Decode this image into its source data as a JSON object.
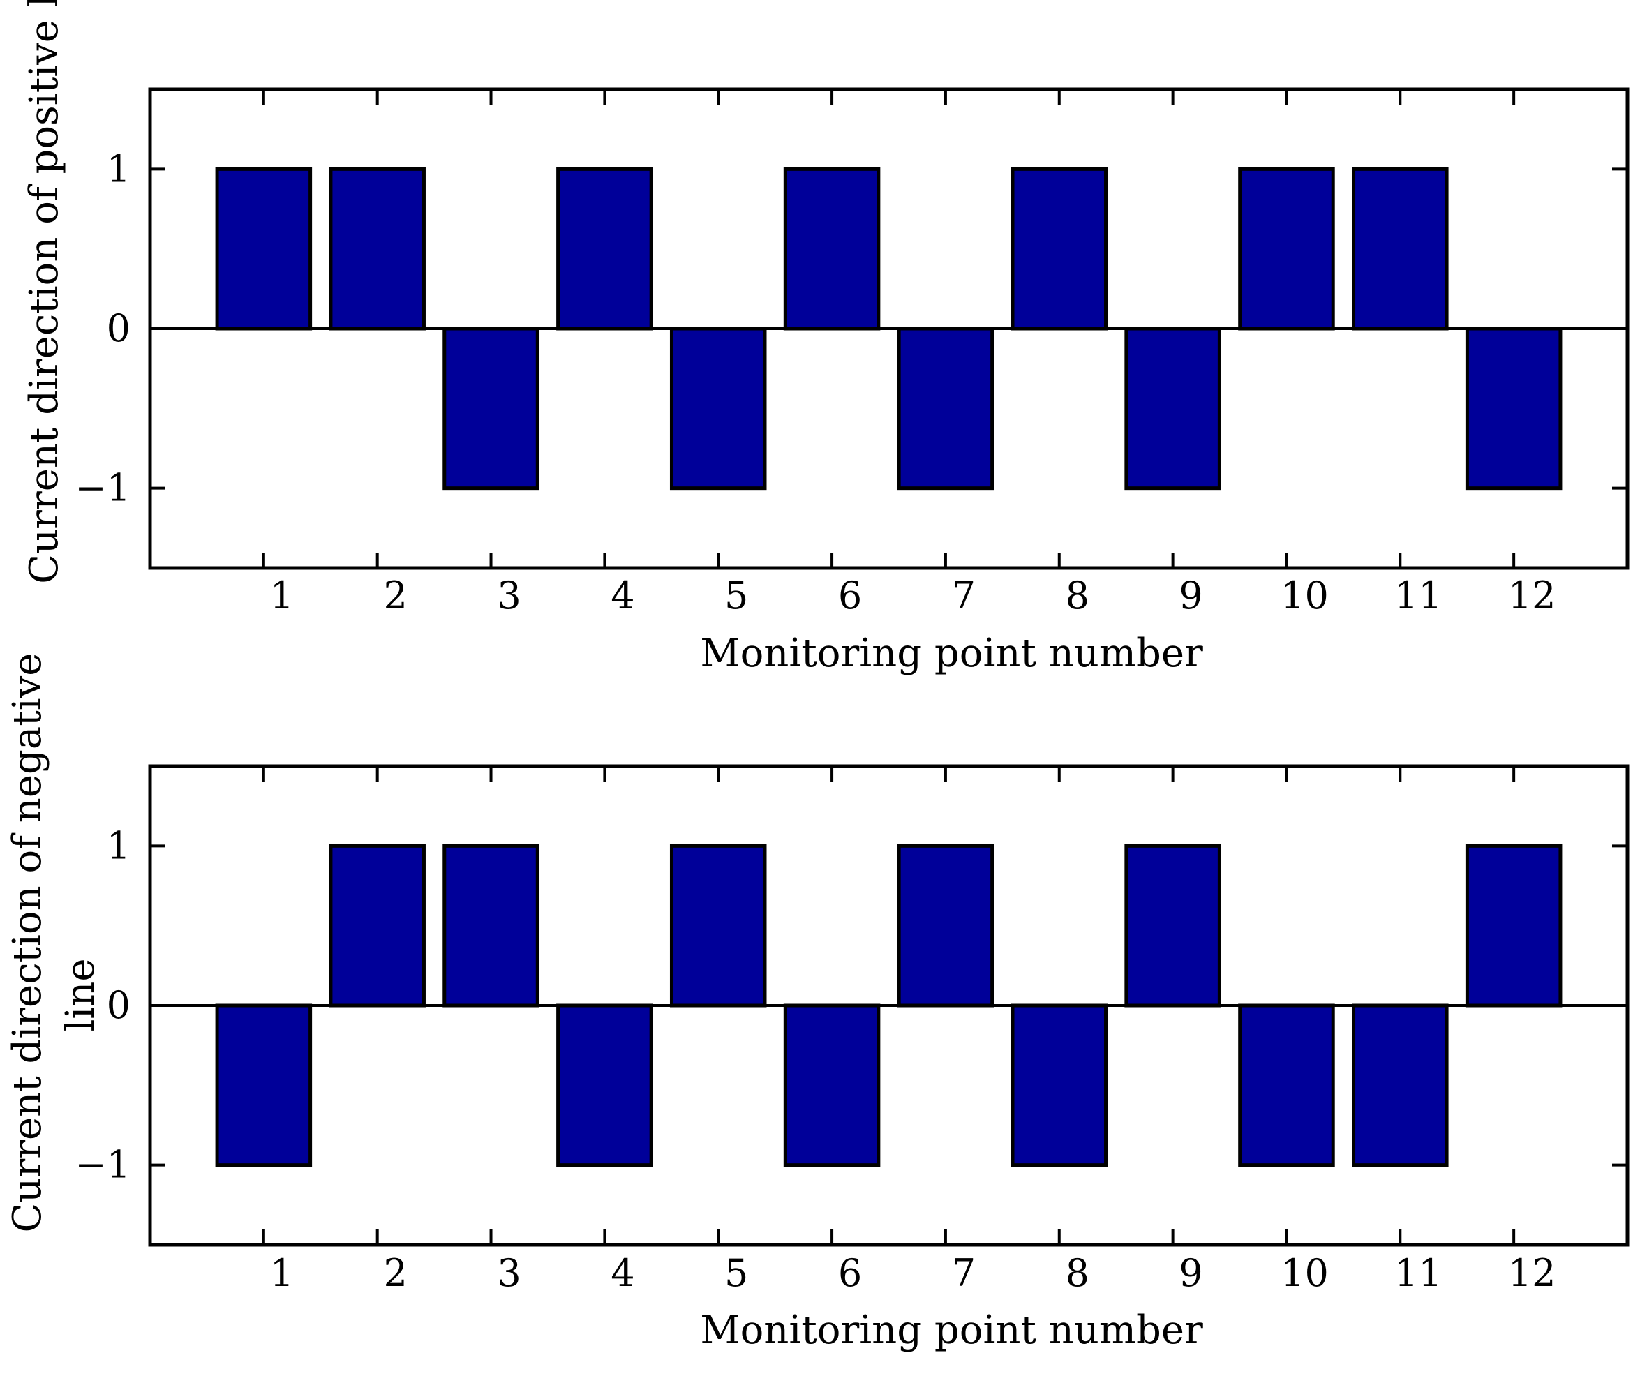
{
  "chart_data": [
    {
      "type": "bar",
      "categories": [
        "1",
        "2",
        "3",
        "4",
        "5",
        "6",
        "7",
        "8",
        "9",
        "10",
        "11",
        "12"
      ],
      "values": [
        1,
        1,
        -1,
        1,
        -1,
        1,
        -1,
        1,
        -1,
        1,
        1,
        -1
      ],
      "xlabel": "Monitoring point number",
      "ylabel": [
        "Current direction of positive line"
      ],
      "xlim": [
        0,
        13
      ],
      "ylim": [
        -1.5,
        1.5
      ],
      "yticks": [
        {
          "value": -1,
          "label": "−1"
        },
        {
          "value": 0,
          "label": "0"
        },
        {
          "value": 1,
          "label": "1"
        }
      ],
      "bar_color": "#000099",
      "grid": false
    },
    {
      "type": "bar",
      "categories": [
        "1",
        "2",
        "3",
        "4",
        "5",
        "6",
        "7",
        "8",
        "9",
        "10",
        "11",
        "12"
      ],
      "values": [
        -1,
        1,
        1,
        -1,
        1,
        -1,
        1,
        -1,
        1,
        -1,
        -1,
        1
      ],
      "xlabel": "Monitoring point number",
      "ylabel": [
        "Current direction of negative",
        "line"
      ],
      "xlim": [
        0,
        13
      ],
      "ylim": [
        -1.5,
        1.5
      ],
      "yticks": [
        {
          "value": -1,
          "label": "−1"
        },
        {
          "value": 0,
          "label": "0"
        },
        {
          "value": 1,
          "label": "1"
        }
      ],
      "bar_color": "#000099",
      "grid": false
    }
  ]
}
